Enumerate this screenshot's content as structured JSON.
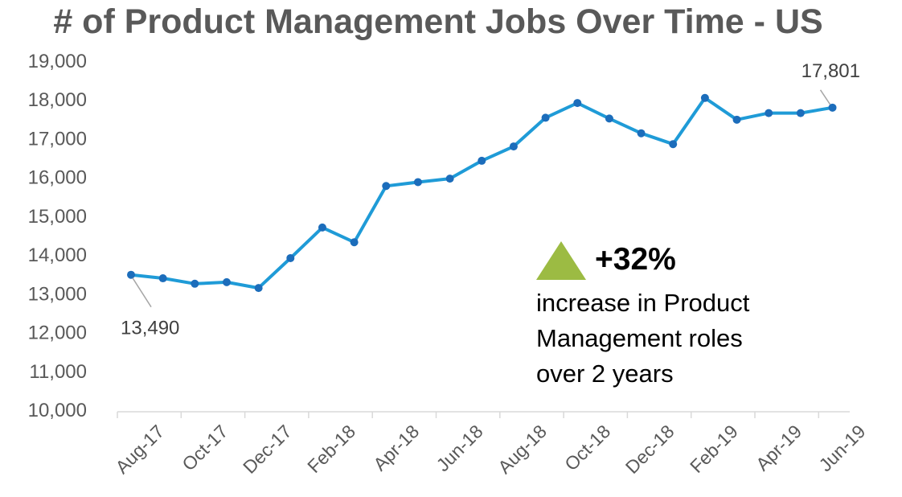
{
  "chart_data": {
    "type": "line",
    "title": "# of Product Management Jobs Over Time - US",
    "x": [
      "Aug-17",
      "Sep-17",
      "Oct-17",
      "Nov-17",
      "Dec-17",
      "Jan-18",
      "Feb-18",
      "Mar-18",
      "Apr-18",
      "May-18",
      "Jun-18",
      "Jul-18",
      "Aug-18",
      "Sep-18",
      "Oct-18",
      "Nov-18",
      "Dec-18",
      "Jan-19",
      "Feb-19",
      "Mar-19",
      "Apr-19",
      "May-19",
      "Jun-19"
    ],
    "tick_labels": [
      "Aug-17",
      "Oct-17",
      "Dec-17",
      "Feb-18",
      "Apr-18",
      "Jun-18",
      "Aug-18",
      "Oct-18",
      "Dec-18",
      "Feb-19",
      "Apr-19",
      "Jun-19"
    ],
    "series": [
      {
        "name": "Product Management Jobs",
        "color": "#1f9bd7",
        "marker_color": "#1c6dbb",
        "values": [
          13490,
          13400,
          13260,
          13300,
          13150,
          13920,
          14710,
          14330,
          15780,
          15880,
          15970,
          16430,
          16800,
          17540,
          17920,
          17520,
          17140,
          16860,
          18050,
          17490,
          17660,
          17660,
          17801
        ]
      }
    ],
    "ylim": [
      10000,
      19000
    ],
    "yticks": [
      "10,000",
      "11,000",
      "12,000",
      "13,000",
      "14,000",
      "15,000",
      "16,000",
      "17,000",
      "18,000",
      "19,000"
    ],
    "annotations": [
      {
        "text": "13,490",
        "point_index": 0
      },
      {
        "text": "17,801",
        "point_index": 22
      }
    ],
    "xlabel": "",
    "ylabel": ""
  },
  "callout": {
    "change": "+32%",
    "lines": [
      "increase in Product",
      "Management roles",
      "over 2 years"
    ],
    "triangle_color": "#9cbb43"
  },
  "colors": {
    "axis": "#d9d9d9",
    "tick_text": "#595959",
    "title": "#595959"
  }
}
